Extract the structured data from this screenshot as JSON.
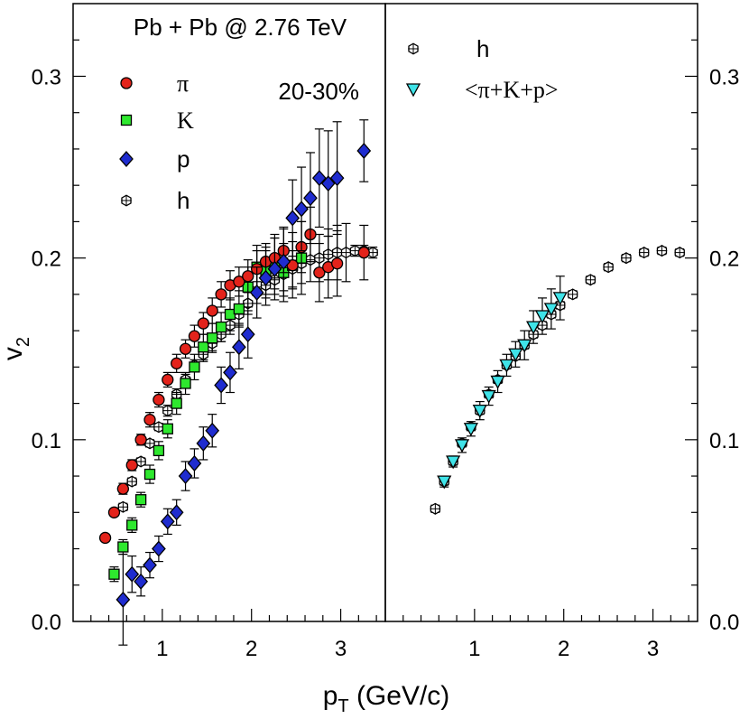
{
  "chart_data": {
    "type": "scatter",
    "title": "Pb + Pb @ 2.76 TeV",
    "centrality": "20-30%",
    "xlabel_main": "p",
    "xlabel_sub": "T",
    "xlabel_rest": " (GeV/c)",
    "ylabel_main": "v",
    "ylabel_sub": "2",
    "xlim": [
      0,
      3.5
    ],
    "ylim": [
      0,
      0.34
    ],
    "x_ticks": [
      1,
      2,
      3
    ],
    "y_ticks": [
      0.0,
      0.1,
      0.2,
      0.3
    ],
    "x_tick_labels": [
      "1",
      "2",
      "3"
    ],
    "y_tick_labels": [
      "0.0",
      "0.1",
      "0.2",
      "0.3"
    ],
    "panels": [
      {
        "name": "left",
        "legend": [
          {
            "label": "π",
            "marker": "circle",
            "color": "#e3231b"
          },
          {
            "label": "K",
            "marker": "square",
            "color": "#2ee82e"
          },
          {
            "label": "p",
            "marker": "diamond",
            "color": "#1f2ccf"
          },
          {
            "label": "h",
            "marker": "hexcross",
            "color": "#ffffff"
          }
        ],
        "series": [
          {
            "name": "π",
            "marker": "circle",
            "color": "#e3231b",
            "x": [
              0.36,
              0.46,
              0.56,
              0.66,
              0.76,
              0.86,
              0.96,
              1.06,
              1.16,
              1.26,
              1.36,
              1.46,
              1.56,
              1.66,
              1.76,
              1.86,
              1.96,
              2.06,
              2.16,
              2.26,
              2.36,
              2.46,
              2.56,
              2.66,
              2.76,
              2.86,
              2.96,
              3.26
            ],
            "y": [
              0.046,
              0.06,
              0.073,
              0.086,
              0.1,
              0.111,
              0.122,
              0.133,
              0.142,
              0.15,
              0.157,
              0.164,
              0.171,
              0.18,
              0.185,
              0.187,
              0.19,
              0.194,
              0.198,
              0.2,
              0.204,
              0.196,
              0.206,
              0.213,
              0.192,
              0.195,
              0.197,
              0.203
            ],
            "err": [
              0.002,
              0.002,
              0.003,
              0.003,
              0.003,
              0.004,
              0.004,
              0.004,
              0.005,
              0.005,
              0.006,
              0.006,
              0.007,
              0.007,
              0.008,
              0.008,
              0.009,
              0.01,
              0.01,
              0.011,
              0.012,
              0.013,
              0.014,
              0.015,
              0.016,
              0.017,
              0.018,
              0.015
            ]
          },
          {
            "name": "K",
            "marker": "square",
            "color": "#2ee82e",
            "x": [
              0.46,
              0.56,
              0.66,
              0.76,
              0.86,
              0.96,
              1.06,
              1.16,
              1.26,
              1.36,
              1.46,
              1.56,
              1.66,
              1.76,
              1.86,
              1.96,
              2.06,
              2.16,
              2.26,
              2.36,
              2.46,
              2.56
            ],
            "y": [
              0.026,
              0.041,
              0.053,
              0.067,
              0.081,
              0.094,
              0.106,
              0.12,
              0.131,
              0.14,
              0.151,
              0.156,
              0.162,
              0.169,
              0.172,
              0.184,
              0.195,
              0.193,
              0.198,
              0.192,
              0.196,
              0.2
            ],
            "err": [
              0.004,
              0.004,
              0.004,
              0.004,
              0.005,
              0.005,
              0.005,
              0.006,
              0.006,
              0.007,
              0.007,
              0.008,
              0.008,
              0.009,
              0.01,
              0.011,
              0.012,
              0.013,
              0.015,
              0.016,
              0.018,
              0.02
            ]
          },
          {
            "name": "p",
            "marker": "diamond",
            "color": "#1f2ccf",
            "x": [
              0.56,
              0.66,
              0.76,
              0.86,
              0.96,
              1.06,
              1.16,
              1.26,
              1.36,
              1.46,
              1.56,
              1.66,
              1.76,
              1.86,
              1.96,
              2.06,
              2.16,
              2.26,
              2.36,
              2.46,
              2.56,
              2.66,
              2.76,
              2.86,
              2.96,
              3.26
            ],
            "y": [
              0.012,
              0.026,
              0.022,
              0.031,
              0.04,
              0.055,
              0.06,
              0.08,
              0.087,
              0.098,
              0.105,
              0.13,
              0.137,
              0.151,
              0.158,
              0.181,
              0.189,
              0.194,
              0.198,
              0.222,
              0.227,
              0.233,
              0.244,
              0.241,
              0.244,
              0.259
            ],
            "err": [
              0.025,
              0.01,
              0.008,
              0.007,
              0.007,
              0.007,
              0.007,
              0.008,
              0.008,
              0.009,
              0.009,
              0.01,
              0.011,
              0.012,
              0.013,
              0.014,
              0.015,
              0.017,
              0.019,
              0.021,
              0.023,
              0.025,
              0.027,
              0.029,
              0.031,
              0.017
            ]
          },
          {
            "name": "h",
            "marker": "hexcross",
            "color": "#ffffff",
            "x": [
              0.56,
              0.66,
              0.76,
              0.86,
              0.96,
              1.06,
              1.16,
              1.26,
              1.36,
              1.46,
              1.56,
              1.66,
              1.76,
              1.86,
              1.96,
              2.06,
              2.16,
              2.26,
              2.36,
              2.46,
              2.56,
              2.66,
              2.76,
              2.86,
              2.96,
              3.06,
              3.16,
              3.26,
              3.36
            ],
            "y": [
              0.063,
              0.077,
              0.088,
              0.098,
              0.107,
              0.116,
              0.125,
              0.133,
              0.141,
              0.147,
              0.153,
              0.158,
              0.163,
              0.169,
              0.175,
              0.181,
              0.185,
              0.188,
              0.191,
              0.194,
              0.197,
              0.199,
              0.2,
              0.202,
              0.203,
              0.203,
              0.204,
              0.204,
              0.203
            ],
            "err": [
              0.002,
              0.002,
              0.002,
              0.002,
              0.002,
              0.003,
              0.003,
              0.003,
              0.003,
              0.004,
              0.004,
              0.004,
              0.005,
              0.005,
              0.006,
              0.006,
              0.007,
              0.008,
              0.009,
              0.01,
              0.011,
              0.012,
              0.013,
              0.014,
              0.015,
              0.016,
              0.003,
              0.003,
              0.003
            ]
          }
        ]
      },
      {
        "name": "right",
        "legend": [
          {
            "label": "h",
            "marker": "hexcross",
            "color": "#ffffff"
          },
          {
            "label": "<π+K+p>",
            "marker": "triangle-down",
            "color": "#3fe3e8"
          }
        ],
        "series": [
          {
            "name": "h",
            "marker": "hexcross",
            "color": "#ffffff",
            "x": [
              0.56,
              0.66,
              0.76,
              0.86,
              0.96,
              1.06,
              1.16,
              1.26,
              1.36,
              1.46,
              1.56,
              1.66,
              1.76,
              1.86,
              1.96,
              2.1,
              2.3,
              2.5,
              2.7,
              2.9,
              3.1,
              3.3
            ],
            "y": [
              0.062,
              0.077,
              0.088,
              0.098,
              0.107,
              0.116,
              0.125,
              0.133,
              0.141,
              0.146,
              0.152,
              0.158,
              0.163,
              0.169,
              0.174,
              0.18,
              0.188,
              0.195,
              0.2,
              0.203,
              0.204,
              0.203
            ],
            "err": [
              0.002,
              0.002,
              0.002,
              0.002,
              0.002,
              0.002,
              0.002,
              0.002,
              0.002,
              0.002,
              0.002,
              0.002,
              0.002,
              0.002,
              0.002,
              0.002,
              0.002,
              0.002,
              0.002,
              0.002,
              0.002,
              0.002
            ]
          },
          {
            "name": "<π+K+p>",
            "marker": "triangle-down",
            "color": "#3fe3e8",
            "x": [
              0.66,
              0.76,
              0.86,
              0.96,
              1.06,
              1.16,
              1.26,
              1.36,
              1.46,
              1.56,
              1.66,
              1.76,
              1.86,
              1.96
            ],
            "y": [
              0.077,
              0.088,
              0.097,
              0.106,
              0.116,
              0.124,
              0.132,
              0.141,
              0.147,
              0.152,
              0.162,
              0.168,
              0.172,
              0.178
            ],
            "err": [
              0.003,
              0.003,
              0.004,
              0.004,
              0.005,
              0.005,
              0.006,
              0.006,
              0.007,
              0.008,
              0.009,
              0.01,
              0.011,
              0.012
            ]
          }
        ]
      }
    ]
  }
}
